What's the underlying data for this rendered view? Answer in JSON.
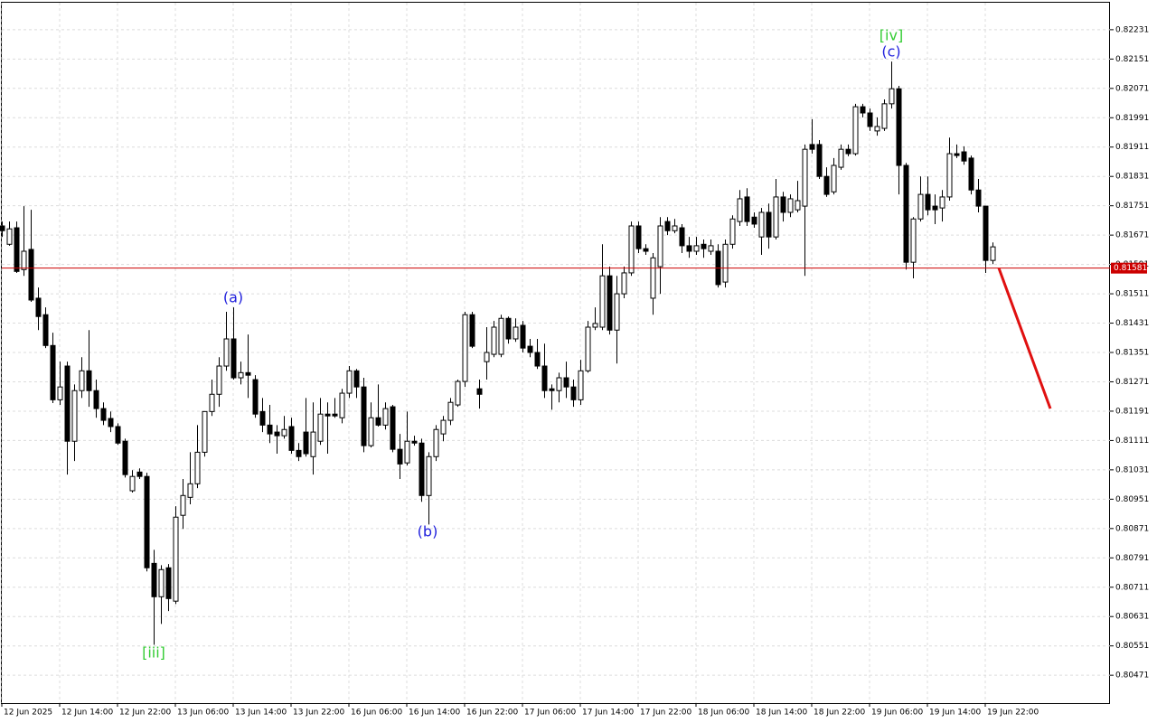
{
  "chart_data": {
    "type": "candlestick",
    "categories": [
      "12 Jun 2025",
      null,
      null,
      null,
      null,
      null,
      null,
      null,
      "12 Jun 14:00",
      null,
      null,
      null,
      null,
      null,
      null,
      null,
      "12 Jun 22:00",
      null,
      null,
      null,
      null,
      null,
      null,
      null,
      "13 Jun 06:00",
      null,
      null,
      null,
      null,
      null,
      null,
      null,
      "13 Jun 14:00",
      null,
      null,
      null,
      null,
      null,
      null,
      null,
      "13 Jun 22:00",
      null,
      null,
      null,
      null,
      null,
      null,
      null,
      "16 Jun 06:00",
      null,
      null,
      null,
      null,
      null,
      null,
      null,
      "16 Jun 14:00",
      null,
      null,
      null,
      null,
      null,
      null,
      null,
      "16 Jun 22:00",
      null,
      null,
      null,
      null,
      null,
      null,
      null,
      "17 Jun 06:00",
      null,
      null,
      null,
      null,
      null,
      null,
      null,
      "17 Jun 14:00",
      null,
      null,
      null,
      null,
      null,
      null,
      null,
      "17 Jun 22:00",
      null,
      null,
      null,
      null,
      null,
      null,
      null,
      "18 Jun 06:00",
      null,
      null,
      null,
      null,
      null,
      null,
      null,
      "18 Jun 14:00",
      null,
      null,
      null,
      null,
      null,
      null,
      null,
      "18 Jun 22:00",
      null,
      null,
      null,
      null,
      null,
      null,
      null,
      "19 Jun 06:00",
      null,
      null,
      null,
      null,
      null,
      null,
      null,
      "19 Jun 14:00",
      null,
      null,
      null,
      null,
      null,
      null,
      null,
      "19 Jun 22:00",
      null
    ],
    "open": [
      0.81696,
      0.81646,
      0.81691,
      0.81577,
      0.81632,
      0.81499,
      0.81454,
      0.8137,
      0.81222,
      0.81314,
      0.81109,
      0.81247,
      0.81301,
      0.81247,
      0.81198,
      0.81171,
      0.81149,
      0.81109,
      0.80974,
      0.81025,
      0.81013,
      0.80776,
      0.80685,
      0.80764,
      0.80673,
      0.80907,
      0.80956,
      0.80993,
      0.81079,
      0.8119,
      0.81237,
      0.81314,
      0.81388,
      0.81282,
      0.81296,
      0.81277,
      0.8119,
      0.81153,
      0.81134,
      0.81124,
      0.81149,
      0.81084,
      0.81134,
      0.81067,
      0.81109,
      0.81183,
      0.81183,
      0.81173,
      0.8124,
      0.81301,
      0.81257,
      0.81097,
      0.81173,
      0.81153,
      0.81203,
      0.81087,
      0.8105,
      0.81109,
      0.81104,
      0.80961,
      0.81067,
      0.81129,
      0.81166,
      0.81208,
      0.81272,
      0.81454,
      0.81252,
      0.81326,
      0.81346,
      0.81346,
      0.81444,
      0.81388,
      0.81425,
      0.81368,
      0.81351,
      0.81314,
      0.81252,
      0.81247,
      0.81282,
      0.81257,
      0.81222,
      0.81301,
      0.8142,
      0.8142,
      0.8156,
      0.81412,
      0.81511,
      0.81568,
      0.81696,
      0.81634,
      0.81499,
      0.81585,
      0.81708,
      0.81683,
      0.81691,
      0.81642,
      0.81627,
      0.81646,
      0.81627,
      0.81627,
      0.81543,
      0.81646,
      0.81708,
      0.81775,
      0.8172,
      0.81666,
      0.81733,
      0.81666,
      0.81775,
      0.81733,
      0.8174,
      0.8175,
      0.81918,
      0.81918,
      0.81831,
      0.81789,
      0.81856,
      0.81905,
      0.81893,
      0.82021,
      0.82004,
      0.81955,
      0.81962,
      0.82029,
      0.8207,
      0.81861,
      0.81597,
      0.81715,
      0.81782,
      0.8175,
      0.81745,
      0.81775,
      0.81893,
      0.81898,
      0.81881,
      0.81794,
      0.8175,
      0.81602
    ],
    "high": [
      0.81708,
      0.81708,
      0.81708,
      0.8175,
      0.8174,
      0.81528,
      0.81474,
      0.81405,
      0.81326,
      0.81326,
      0.81264,
      0.81338,
      0.81412,
      0.81277,
      0.81215,
      0.8119,
      0.81158,
      0.81116,
      0.8103,
      0.81035,
      0.81023,
      0.80813,
      0.80771,
      0.80774,
      0.80932,
      0.81006,
      0.81079,
      0.81153,
      0.8119,
      0.81277,
      0.81338,
      0.81462,
      0.81474,
      0.81326,
      0.814,
      0.81289,
      0.81227,
      0.81208,
      0.81153,
      0.81178,
      0.81173,
      0.81104,
      0.81227,
      0.81215,
      0.81227,
      0.81215,
      0.81227,
      0.81252,
      0.81314,
      0.81306,
      0.81282,
      0.81215,
      0.81264,
      0.81215,
      0.81208,
      0.81129,
      0.8119,
      0.81124,
      0.81116,
      0.81079,
      0.81153,
      0.81178,
      0.81227,
      0.81277,
      0.81462,
      0.81462,
      0.81277,
      0.8142,
      0.81437,
      0.81454,
      0.81449,
      0.81444,
      0.81437,
      0.81388,
      0.81388,
      0.81375,
      0.81264,
      0.81296,
      0.81326,
      0.81277,
      0.81331,
      0.81437,
      0.81474,
      0.81646,
      0.81585,
      0.8156,
      0.81585,
      0.81708,
      0.81708,
      0.81646,
      0.81622,
      0.8172,
      0.8172,
      0.81715,
      0.81701,
      0.81666,
      0.81666,
      0.81659,
      0.81659,
      0.81646,
      0.81659,
      0.81725,
      0.81794,
      0.81799,
      0.81733,
      0.81745,
      0.81757,
      0.81824,
      0.81789,
      0.81782,
      0.81819,
      0.81918,
      0.81987,
      0.8193,
      0.81856,
      0.81881,
      0.81918,
      0.81918,
      0.82029,
      0.82029,
      0.82016,
      0.81992,
      0.82041,
      0.82144,
      0.82078,
      0.81868,
      0.8172,
      0.81831,
      0.81831,
      0.81782,
      0.81794,
      0.81937,
      0.81918,
      0.81913,
      0.81888,
      0.81824,
      0.8175,
      0.81651
    ],
    "low": [
      0.81666,
      0.81642,
      0.81568,
      0.8156,
      0.81489,
      0.81412,
      0.81363,
      0.81213,
      0.81208,
      0.81018,
      0.81055,
      0.81227,
      0.81203,
      0.81173,
      0.81153,
      0.81134,
      0.81099,
      0.8101,
      0.80969,
      0.81006,
      0.80754,
      0.80554,
      0.80611,
      0.80646,
      0.80665,
      0.8087,
      0.80937,
      0.80981,
      0.81067,
      0.81178,
      0.81203,
      0.81301,
      0.81277,
      0.81264,
      0.81227,
      0.81173,
      0.81134,
      0.81104,
      0.81075,
      0.81116,
      0.81075,
      0.81055,
      0.81067,
      0.81018,
      0.81099,
      0.81075,
      0.81173,
      0.81158,
      0.81227,
      0.81227,
      0.81079,
      0.81092,
      0.81149,
      0.81141,
      0.81079,
      0.81006,
      0.81043,
      0.81097,
      0.80944,
      0.80882,
      0.81055,
      0.81109,
      0.81153,
      0.81203,
      0.81257,
      0.81363,
      0.81198,
      0.81277,
      0.81338,
      0.81338,
      0.81375,
      0.8138,
      0.81351,
      0.81338,
      0.81306,
      0.81227,
      0.81195,
      0.81215,
      0.81227,
      0.81203,
      0.81208,
      0.81296,
      0.81412,
      0.81412,
      0.814,
      0.81321,
      0.81499,
      0.8156,
      0.81622,
      0.81617,
      0.81454,
      0.81511,
      0.81671,
      0.81676,
      0.81622,
      0.81609,
      0.81617,
      0.81609,
      0.81617,
      0.81528,
      0.81528,
      0.81634,
      0.81696,
      0.81696,
      0.81691,
      0.81617,
      0.81634,
      0.81659,
      0.81708,
      0.8172,
      0.81733,
      0.8156,
      0.81893,
      0.81824,
      0.81775,
      0.81782,
      0.81849,
      0.81886,
      0.81888,
      0.81992,
      0.81955,
      0.81942,
      0.81955,
      0.82016,
      0.81782,
      0.81577,
      0.81553,
      0.81708,
      0.81725,
      0.81701,
      0.81708,
      0.81765,
      0.81881,
      0.81863,
      0.81782,
      0.81733,
      0.81568,
      0.81592
    ],
    "close": [
      0.81683,
      0.81688,
      0.81572,
      0.81627,
      0.81494,
      0.81449,
      0.8137,
      0.81222,
      0.81257,
      0.81109,
      0.81247,
      0.81301,
      0.81247,
      0.81198,
      0.81166,
      0.81149,
      0.81104,
      0.81018,
      0.81013,
      0.81013,
      0.80764,
      0.80685,
      0.80759,
      0.8068,
      0.80902,
      0.80961,
      0.80993,
      0.81079,
      0.8119,
      0.81237,
      0.81314,
      0.81388,
      0.81282,
      0.81296,
      0.81289,
      0.81183,
      0.81153,
      0.81129,
      0.81124,
      0.81141,
      0.81084,
      0.81067,
      0.81075,
      0.81134,
      0.81183,
      0.81178,
      0.81178,
      0.8124,
      0.81301,
      0.81257,
      0.81097,
      0.81173,
      0.81153,
      0.81198,
      0.81087,
      0.81047,
      0.81109,
      0.81104,
      0.80961,
      0.81067,
      0.81141,
      0.81166,
      0.81215,
      0.81272,
      0.81454,
      0.81368,
      0.81237,
      0.81351,
      0.8142,
      0.81444,
      0.81388,
      0.8142,
      0.81363,
      0.81351,
      0.81314,
      0.81247,
      0.81247,
      0.81282,
      0.81257,
      0.81222,
      0.81301,
      0.8142,
      0.8143,
      0.8156,
      0.81412,
      0.81511,
      0.81568,
      0.81696,
      0.81634,
      0.81627,
      0.81609,
      0.81696,
      0.81683,
      0.81696,
      0.81642,
      0.81627,
      0.81642,
      0.81634,
      0.81642,
      0.81536,
      0.81646,
      0.81715,
      0.8177,
      0.81708,
      0.81701,
      0.81733,
      0.81666,
      0.81775,
      0.81733,
      0.8177,
      0.81765,
      0.81905,
      0.81905,
      0.81831,
      0.81782,
      0.81861,
      0.81905,
      0.81893,
      0.82021,
      0.82004,
      0.81967,
      0.81967,
      0.82029,
      0.8207,
      0.81861,
      0.81597,
      0.81715,
      0.81782,
      0.8174,
      0.8174,
      0.81775,
      0.81893,
      0.81888,
      0.81873,
      0.81794,
      0.8175,
      0.81602,
      0.81639
    ],
    "bull_color": "#ffffff",
    "bear_color": "#000000",
    "ylim": [
      0.80395,
      0.82312
    ],
    "yticks": [
      0.82231,
      0.82151,
      0.82071,
      0.81991,
      0.81911,
      0.81831,
      0.81751,
      0.81671,
      0.81591,
      0.81511,
      0.81431,
      0.81351,
      0.81271,
      0.81191,
      0.81111,
      0.81031,
      0.80951,
      0.80871,
      0.80791,
      0.80711,
      0.80631,
      0.80551,
      0.80471
    ],
    "grid": true,
    "current_price": {
      "value": 0.81581,
      "color": "#cc0000"
    },
    "forecast": {
      "values": [
        0.81581,
        0.81198
      ],
      "color": "#e01010"
    },
    "annotations": [
      {
        "text": "[iii]",
        "color": "#33cc33"
      },
      {
        "text": "(a)",
        "color": "#2222dd"
      },
      {
        "text": "(b)",
        "color": "#2222dd"
      },
      {
        "text": "[iv]",
        "color": "#33cc33"
      },
      {
        "text": "(c)",
        "color": "#2222dd"
      }
    ]
  }
}
